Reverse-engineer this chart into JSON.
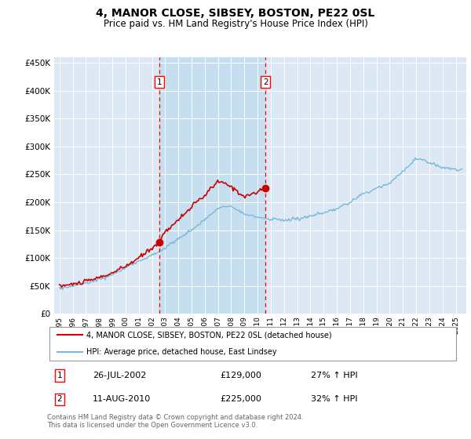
{
  "title": "4, MANOR CLOSE, SIBSEY, BOSTON, PE22 0SL",
  "subtitle": "Price paid vs. HM Land Registry's House Price Index (HPI)",
  "plot_bg_color": "#dce9f5",
  "shade_color": "#c5dff0",
  "hpi_color": "#7ab8d9",
  "price_color": "#cc0000",
  "marker1_year": 2002.57,
  "marker1_price": 129000,
  "marker2_year": 2010.61,
  "marker2_price": 225000,
  "legend_line1": "4, MANOR CLOSE, SIBSEY, BOSTON, PE22 0SL (detached house)",
  "legend_line2": "HPI: Average price, detached house, East Lindsey",
  "annotation1_date": "26-JUL-2002",
  "annotation1_price": "£129,000",
  "annotation1_hpi": "27% ↑ HPI",
  "annotation2_date": "11-AUG-2010",
  "annotation2_price": "£225,000",
  "annotation2_hpi": "32% ↑ HPI",
  "footer": "Contains HM Land Registry data © Crown copyright and database right 2024.\nThis data is licensed under the Open Government Licence v3.0.",
  "ylim_max": 460000,
  "xmin": 1994.6,
  "xmax": 2025.8
}
